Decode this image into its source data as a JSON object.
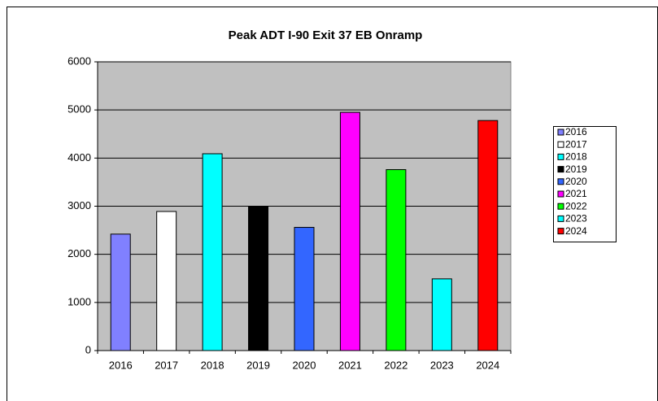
{
  "chart_data": {
    "type": "bar",
    "title": "Peak ADT I-90 Exit 37 EB Onramp",
    "categories": [
      "2016",
      "2017",
      "2018",
      "2019",
      "2020",
      "2021",
      "2022",
      "2023",
      "2024"
    ],
    "values": [
      2420,
      2890,
      4090,
      2990,
      2560,
      4950,
      3760,
      1490,
      4780
    ],
    "colors": [
      "#8080ff",
      "#ffffff",
      "#00ffff",
      "#000000",
      "#3366ff",
      "#ff00ff",
      "#00ff00",
      "#00ffff",
      "#ff0000"
    ],
    "ylim": [
      0,
      6000
    ],
    "yticks": [
      0,
      1000,
      2000,
      3000,
      4000,
      5000,
      6000
    ],
    "grid": true,
    "legend": "right"
  }
}
